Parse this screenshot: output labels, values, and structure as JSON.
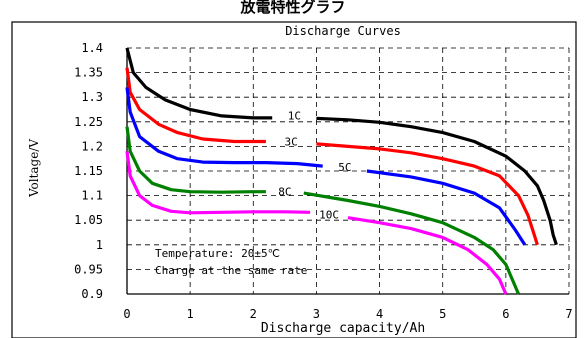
{
  "page_heading": "放電特性グラフ",
  "chart_data": {
    "type": "line",
    "title": "Discharge Curves",
    "xlabel": "Discharge capacity/Ah",
    "ylabel": "Voltage/V",
    "xlim": [
      0,
      7
    ],
    "ylim": [
      0.9,
      1.4
    ],
    "x_ticks": [
      "0",
      "1",
      "2",
      "3",
      "4",
      "5",
      "6",
      "7"
    ],
    "y_ticks": [
      "0.9",
      "0.95",
      "1",
      "1.05",
      "1.1",
      "1.15",
      "1.2",
      "1.25",
      "1.3",
      "1.35",
      "1.4"
    ],
    "grid": {
      "x": "dashed",
      "y": "dashed"
    },
    "annotations": [
      "Temperature: 20±5℃",
      "Charge at the same rate"
    ],
    "series": [
      {
        "name": "1C",
        "color": "#000000",
        "x": [
          0,
          0.1,
          0.3,
          0.6,
          1.0,
          1.5,
          2.0,
          2.3,
          3.0,
          3.5,
          4.0,
          4.5,
          5.0,
          5.5,
          6.0,
          6.3,
          6.5,
          6.6,
          6.7,
          6.75,
          6.8
        ],
        "y": [
          1.4,
          1.35,
          1.32,
          1.295,
          1.275,
          1.262,
          1.258,
          1.258,
          1.257,
          1.254,
          1.249,
          1.24,
          1.228,
          1.21,
          1.18,
          1.15,
          1.12,
          1.09,
          1.05,
          1.02,
          1.0
        ]
      },
      {
        "name": "3C",
        "color": "#ff0000",
        "x": [
          0,
          0.05,
          0.2,
          0.5,
          0.8,
          1.2,
          1.7,
          2.2,
          3.0,
          3.5,
          4.0,
          4.5,
          5.0,
          5.5,
          5.9,
          6.2,
          6.35,
          6.45,
          6.5
        ],
        "y": [
          1.36,
          1.31,
          1.275,
          1.245,
          1.228,
          1.215,
          1.21,
          1.21,
          1.205,
          1.2,
          1.195,
          1.187,
          1.175,
          1.16,
          1.14,
          1.1,
          1.06,
          1.02,
          1.0
        ]
      },
      {
        "name": "5C",
        "color": "#0000ff",
        "x": [
          0,
          0.05,
          0.2,
          0.5,
          0.8,
          1.2,
          1.7,
          2.2,
          2.7,
          3.1,
          3.8,
          4.5,
          5.0,
          5.5,
          5.9,
          6.15,
          6.3
        ],
        "y": [
          1.32,
          1.27,
          1.22,
          1.19,
          1.175,
          1.168,
          1.167,
          1.167,
          1.165,
          1.16,
          1.15,
          1.138,
          1.125,
          1.105,
          1.075,
          1.03,
          1.0
        ]
      },
      {
        "name": "8C",
        "color": "#008000",
        "x": [
          0,
          0.05,
          0.2,
          0.4,
          0.7,
          1.0,
          1.5,
          2.0,
          2.2,
          2.8,
          3.5,
          4.0,
          4.5,
          5.0,
          5.5,
          5.8,
          6.0,
          6.1,
          6.2
        ],
        "y": [
          1.24,
          1.19,
          1.15,
          1.125,
          1.112,
          1.108,
          1.107,
          1.108,
          1.108,
          1.105,
          1.09,
          1.078,
          1.063,
          1.045,
          1.015,
          0.99,
          0.96,
          0.93,
          0.9
        ]
      },
      {
        "name": "10C",
        "color": "#ff00ff",
        "x": [
          0,
          0.05,
          0.2,
          0.4,
          0.7,
          1.0,
          1.5,
          2.0,
          2.5,
          2.9,
          3.5,
          4.0,
          4.5,
          5.0,
          5.4,
          5.7,
          5.9,
          6.0
        ],
        "y": [
          1.19,
          1.14,
          1.1,
          1.08,
          1.068,
          1.065,
          1.066,
          1.067,
          1.067,
          1.066,
          1.055,
          1.045,
          1.033,
          1.015,
          0.99,
          0.96,
          0.93,
          0.9
        ]
      }
    ]
  }
}
